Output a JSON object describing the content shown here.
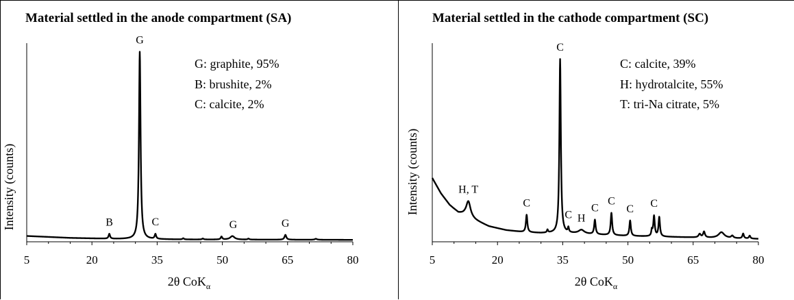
{
  "chart_data": [
    {
      "type": "line",
      "title": "Material settled in the anode compartment (SA)",
      "xlabel": "2θ CoK",
      "xlabel_sub": "α",
      "ylabel": "Intensity (counts)",
      "xlim": [
        5,
        80
      ],
      "ylim": [
        0,
        100
      ],
      "x_ticks": [
        5,
        20,
        35,
        50,
        65,
        80
      ],
      "x_tick_labels": [
        "5",
        "20",
        "35",
        "50",
        "65",
        "80"
      ],
      "legend": [
        "G: graphite, 95%",
        "B: brushite, 2%",
        "C: calcite, 2%"
      ],
      "peak_labels": [
        {
          "label": "G",
          "x": 31.0
        },
        {
          "label": "B",
          "x": 24.0
        },
        {
          "label": "C",
          "x": 34.6
        },
        {
          "label": "G",
          "x": 52.5
        },
        {
          "label": "G",
          "x": 64.5
        }
      ],
      "series": [
        {
          "background": [
            [
              5,
              3.0
            ],
            [
              15,
              2.0
            ],
            [
              25,
              1.5
            ],
            [
              40,
              1.2
            ],
            [
              60,
              1.1
            ],
            [
              80,
              1.0
            ]
          ],
          "peaks": [
            {
              "x": 24.0,
              "h": 2.5,
              "w": 0.2
            },
            {
              "x": 31.0,
              "h": 97.0,
              "w": 0.22
            },
            {
              "x": 34.6,
              "h": 2.5,
              "w": 0.2
            },
            {
              "x": 41.0,
              "h": 0.6,
              "w": 0.2
            },
            {
              "x": 45.5,
              "h": 0.5,
              "w": 0.2
            },
            {
              "x": 49.8,
              "h": 1.5,
              "w": 0.2
            },
            {
              "x": 52.3,
              "h": 1.8,
              "w": 0.6
            },
            {
              "x": 56.0,
              "h": 0.5,
              "w": 0.2
            },
            {
              "x": 64.5,
              "h": 2.5,
              "w": 0.25
            },
            {
              "x": 71.5,
              "h": 0.5,
              "w": 0.3
            }
          ]
        }
      ]
    },
    {
      "type": "line",
      "title": "Material settled in the cathode compartment (SC)",
      "xlabel": "2θ CoK",
      "xlabel_sub": "α",
      "ylabel": "Intensity (counts)",
      "xlim": [
        5,
        80
      ],
      "ylim": [
        0,
        100
      ],
      "x_ticks": [
        5,
        20,
        35,
        50,
        65,
        80
      ],
      "x_tick_labels": [
        "5",
        "20",
        "35",
        "50",
        "65",
        "80"
      ],
      "legend": [
        "C: calcite, 39%",
        "H: hydrotalcite, 55%",
        "T: tri-Na citrate, 5%"
      ],
      "peak_labels": [
        {
          "label": "H, T",
          "x": 13.3
        },
        {
          "label": "C",
          "x": 26.7
        },
        {
          "label": "C",
          "x": 34.4
        },
        {
          "label": "C",
          "x": 36.3
        },
        {
          "label": "H",
          "x": 39.3
        },
        {
          "label": "C",
          "x": 42.4
        },
        {
          "label": "C",
          "x": 46.2
        },
        {
          "label": "C",
          "x": 50.5
        },
        {
          "label": "C",
          "x": 56.0
        }
      ],
      "series": [
        {
          "background": [
            [
              5,
              33
            ],
            [
              7,
              25
            ],
            [
              9,
              19
            ],
            [
              11,
              15
            ],
            [
              12.5,
              14
            ],
            [
              15,
              11
            ],
            [
              18,
              8
            ],
            [
              22,
              6
            ],
            [
              26,
              5
            ],
            [
              30,
              4.5
            ],
            [
              35,
              4.5
            ],
            [
              40,
              4
            ],
            [
              50,
              3
            ],
            [
              60,
              2.5
            ],
            [
              70,
              2
            ],
            [
              80,
              1.5
            ]
          ],
          "peaks": [
            {
              "x": 13.3,
              "h": 8.0,
              "w": 0.6
            },
            {
              "x": 26.7,
              "h": 9.0,
              "w": 0.2
            },
            {
              "x": 31.5,
              "h": 1.5,
              "w": 0.15
            },
            {
              "x": 34.4,
              "h": 90.0,
              "w": 0.2
            },
            {
              "x": 36.3,
              "h": 2.5,
              "w": 0.15
            },
            {
              "x": 39.3,
              "h": 2.0,
              "w": 0.8
            },
            {
              "x": 42.4,
              "h": 7.5,
              "w": 0.2
            },
            {
              "x": 46.2,
              "h": 11.5,
              "w": 0.2
            },
            {
              "x": 50.5,
              "h": 8.0,
              "w": 0.2
            },
            {
              "x": 55.5,
              "h": 3.0,
              "w": 0.15
            },
            {
              "x": 56.0,
              "h": 10.5,
              "w": 0.2
            },
            {
              "x": 57.2,
              "h": 10.0,
              "w": 0.2
            },
            {
              "x": 66.5,
              "h": 1.8,
              "w": 0.3
            },
            {
              "x": 67.5,
              "h": 3.0,
              "w": 0.25
            },
            {
              "x": 71.5,
              "h": 3.0,
              "w": 0.8
            },
            {
              "x": 74.0,
              "h": 1.2,
              "w": 0.3
            },
            {
              "x": 76.5,
              "h": 2.5,
              "w": 0.2
            },
            {
              "x": 78.0,
              "h": 1.5,
              "w": 0.2
            }
          ]
        }
      ]
    }
  ]
}
